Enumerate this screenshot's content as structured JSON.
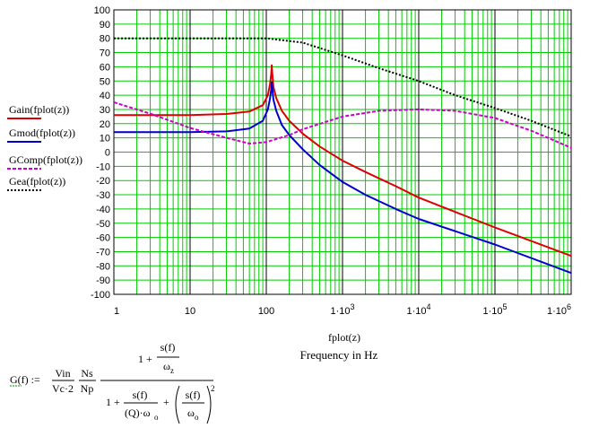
{
  "chart_data": {
    "type": "line",
    "x_scale": "log",
    "xlim": [
      1,
      1000000
    ],
    "ylim": [
      -100,
      100
    ],
    "y_ticks": [
      -100,
      -90,
      -80,
      -70,
      -60,
      -50,
      -40,
      -30,
      -20,
      -10,
      0,
      10,
      20,
      30,
      40,
      50,
      60,
      70,
      80,
      90,
      100
    ],
    "x_ticks": [
      {
        "value": 1,
        "label": "1"
      },
      {
        "value": 10,
        "label": "10"
      },
      {
        "value": 100,
        "label": "100"
      },
      {
        "value": 1000,
        "label": "1·10",
        "exp": "3"
      },
      {
        "value": 10000,
        "label": "1·10",
        "exp": "4"
      },
      {
        "value": 100000,
        "label": "1·10",
        "exp": "5"
      },
      {
        "value": 1000000,
        "label": "1·10",
        "exp": "6"
      }
    ],
    "xlabel": "fplot(z)",
    "subtitle": "Frequency in Hz",
    "grid": true,
    "legend_position": "left",
    "series": [
      {
        "name": "Gain(fplot(z))",
        "color": "#dd0000",
        "style": "solid",
        "points": [
          [
            1,
            26
          ],
          [
            10,
            26
          ],
          [
            30,
            26.8
          ],
          [
            60,
            28.5
          ],
          [
            90,
            33
          ],
          [
            105,
            40
          ],
          [
            112,
            48
          ],
          [
            116,
            55
          ],
          [
            118,
            61
          ],
          [
            120,
            55
          ],
          [
            124,
            46
          ],
          [
            135,
            38
          ],
          [
            160,
            29
          ],
          [
            200,
            22
          ],
          [
            300,
            13
          ],
          [
            500,
            4
          ],
          [
            1000,
            -6
          ],
          [
            2000,
            -14
          ],
          [
            5000,
            -24
          ],
          [
            10000,
            -32
          ],
          [
            100000,
            -53
          ],
          [
            1000000,
            -73
          ]
        ]
      },
      {
        "name": "Gmod(fplot(z))",
        "color": "#0000cc",
        "style": "solid",
        "points": [
          [
            1,
            14
          ],
          [
            10,
            14
          ],
          [
            30,
            14.6
          ],
          [
            60,
            16.5
          ],
          [
            90,
            22
          ],
          [
            105,
            30
          ],
          [
            112,
            38
          ],
          [
            116,
            44
          ],
          [
            118,
            49
          ],
          [
            120,
            45
          ],
          [
            124,
            37
          ],
          [
            135,
            29
          ],
          [
            160,
            19
          ],
          [
            200,
            12
          ],
          [
            300,
            2
          ],
          [
            500,
            -9
          ],
          [
            1000,
            -21
          ],
          [
            2000,
            -30
          ],
          [
            5000,
            -40
          ],
          [
            10000,
            -47
          ],
          [
            100000,
            -65
          ],
          [
            1000000,
            -85
          ]
        ]
      },
      {
        "name": "GComp(fplot(z))",
        "color": "#cc00cc",
        "style": "dashed",
        "points": [
          [
            1,
            35
          ],
          [
            3,
            27
          ],
          [
            10,
            17
          ],
          [
            30,
            10
          ],
          [
            60,
            6
          ],
          [
            100,
            7
          ],
          [
            200,
            12
          ],
          [
            300,
            16
          ],
          [
            1000,
            25
          ],
          [
            3000,
            29
          ],
          [
            10000,
            30
          ],
          [
            30000,
            29
          ],
          [
            100000,
            24
          ],
          [
            300000,
            15
          ],
          [
            1000000,
            3
          ]
        ]
      },
      {
        "name": "Gea(fplot(z))",
        "color": "#000000",
        "style": "dotted",
        "points": [
          [
            1,
            80
          ],
          [
            10,
            80
          ],
          [
            100,
            80
          ],
          [
            300,
            77
          ],
          [
            1000,
            68
          ],
          [
            3000,
            59
          ],
          [
            10000,
            50
          ],
          [
            30000,
            40
          ],
          [
            100000,
            31
          ],
          [
            300000,
            22
          ],
          [
            1000000,
            11
          ]
        ]
      }
    ]
  },
  "equation": {
    "lhs": "G(f) :=",
    "vin": "Vin",
    "vc2": "Vc·2",
    "ns": "Ns",
    "np": "Np",
    "one": "1",
    "plus": "+",
    "sf": "s(f)",
    "omega": "ω",
    "sub_z": "z",
    "sub_o": "o",
    "q_omega": "(Q)·ω",
    "sq": "2"
  }
}
